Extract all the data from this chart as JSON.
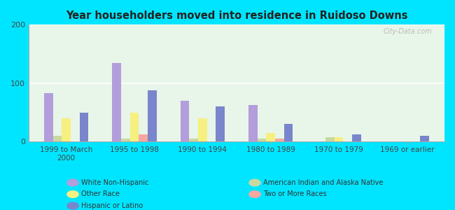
{
  "title": "Year householders moved into residence in Ruidoso Downs",
  "categories": [
    "1999 to March\n2000",
    "1995 to 1998",
    "1990 to 1994",
    "1980 to 1989",
    "1970 to 1979",
    "1969 or earlier"
  ],
  "series_order": [
    "White Non-Hispanic",
    "American Indian and Alaska Native",
    "Other Race",
    "Two or More Races",
    "Hispanic or Latino"
  ],
  "series": {
    "White Non-Hispanic": [
      83,
      135,
      70,
      63,
      0,
      0
    ],
    "American Indian and Alaska Native": [
      10,
      5,
      5,
      5,
      8,
      0
    ],
    "Other Race": [
      40,
      50,
      40,
      15,
      8,
      0
    ],
    "Two or More Races": [
      0,
      12,
      0,
      5,
      0,
      0
    ],
    "Hispanic or Latino": [
      50,
      88,
      60,
      30,
      12,
      10
    ]
  },
  "colors": {
    "White Non-Hispanic": "#b39ddb",
    "American Indian and Alaska Native": "#c8d8a0",
    "Other Race": "#f5f080",
    "Two or More Races": "#f4a8a0",
    "Hispanic or Latino": "#7986cb"
  },
  "ylim": [
    0,
    200
  ],
  "yticks": [
    0,
    100,
    200
  ],
  "background_outer": "#00e5ff",
  "watermark": "City-Data.com",
  "bar_width": 0.13,
  "legend_left": [
    "White Non-Hispanic",
    "Other Race",
    "Hispanic or Latino"
  ],
  "legend_right": [
    "American Indian and Alaska Native",
    "Two or More Races"
  ]
}
